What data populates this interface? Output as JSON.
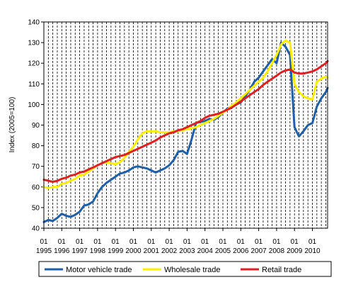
{
  "chart_data": {
    "type": "line",
    "ylabel": "Index (2005=100)",
    "ylim": [
      40,
      140
    ],
    "y_ticks": [
      "40",
      "50",
      "60",
      "70",
      "80",
      "90",
      "100",
      "110",
      "120",
      "130",
      "140"
    ],
    "x_range": [
      1995.0,
      2010.85
    ],
    "x_tick_top": "01",
    "x_years": [
      "1995",
      "1996",
      "1997",
      "1998",
      "1999",
      "2000",
      "2001",
      "2002",
      "2003",
      "2004",
      "2005",
      "2006",
      "2007",
      "2008",
      "2009",
      "2010"
    ],
    "vertical_gridlines": "dashed-quarterly",
    "legend_position": "bottom",
    "series": [
      {
        "name": "Motor vehicle trade",
        "color": "#1f5fa8",
        "x": [
          1995.0,
          1995.25,
          1995.5,
          1995.75,
          1996.0,
          1996.25,
          1996.5,
          1996.75,
          1997.0,
          1997.25,
          1997.5,
          1997.75,
          1998.0,
          1998.25,
          1998.5,
          1998.75,
          1999.0,
          1999.25,
          1999.5,
          1999.75,
          2000.0,
          2000.25,
          2000.5,
          2000.75,
          2001.0,
          2001.25,
          2001.5,
          2001.75,
          2002.0,
          2002.25,
          2002.5,
          2002.75,
          2003.0,
          2003.25,
          2003.5,
          2003.75,
          2004.0,
          2004.25,
          2004.5,
          2004.75,
          2005.0,
          2005.25,
          2005.5,
          2005.75,
          2006.0,
          2006.25,
          2006.5,
          2006.75,
          2007.0,
          2007.25,
          2007.5,
          2007.75,
          2008.0,
          2008.25,
          2008.5,
          2008.75,
          2009.0,
          2009.25,
          2009.5,
          2009.75,
          2010.0,
          2010.25,
          2010.5,
          2010.75,
          2010.85
        ],
        "values": [
          43,
          44,
          43.5,
          45,
          47,
          46,
          45.5,
          46.5,
          48,
          51,
          51.5,
          53,
          57,
          60,
          62,
          63.5,
          65,
          66.5,
          67,
          68,
          69.5,
          70,
          69.5,
          69,
          68,
          67,
          68,
          69,
          70.5,
          73,
          77,
          77.5,
          76,
          83,
          91,
          91.5,
          92,
          93,
          92.5,
          94,
          96,
          98,
          99,
          100,
          101,
          104,
          107,
          111,
          113,
          116,
          119,
          122,
          120,
          130,
          128,
          124,
          89,
          84.5,
          87,
          90,
          91,
          99,
          103,
          106,
          108
        ]
      },
      {
        "name": "Wholesale trade",
        "color": "#ffee00",
        "x": [
          1995.0,
          1995.25,
          1995.5,
          1995.75,
          1996.0,
          1996.25,
          1996.5,
          1996.75,
          1997.0,
          1997.25,
          1997.5,
          1997.75,
          1998.0,
          1998.25,
          1998.5,
          1998.75,
          1999.0,
          1999.25,
          1999.5,
          1999.75,
          2000.0,
          2000.25,
          2000.5,
          2000.75,
          2001.0,
          2001.25,
          2001.5,
          2001.75,
          2002.0,
          2002.25,
          2002.5,
          2002.75,
          2003.0,
          2003.25,
          2003.5,
          2003.75,
          2004.0,
          2004.25,
          2004.5,
          2004.75,
          2005.0,
          2005.25,
          2005.5,
          2005.75,
          2006.0,
          2006.25,
          2006.5,
          2006.75,
          2007.0,
          2007.25,
          2007.5,
          2007.75,
          2008.0,
          2008.25,
          2008.5,
          2008.75,
          2009.0,
          2009.25,
          2009.5,
          2009.75,
          2010.0,
          2010.25,
          2010.5,
          2010.75,
          2010.85
        ],
        "values": [
          60,
          59.5,
          60,
          60,
          61.5,
          62,
          63,
          64,
          65.5,
          66,
          67.5,
          69,
          70.5,
          71.5,
          72,
          71.5,
          71,
          72,
          74,
          77,
          79.5,
          83,
          86,
          87,
          87,
          87,
          86.5,
          86.5,
          86.5,
          87,
          87,
          87.5,
          88,
          88.5,
          89,
          90,
          91,
          92,
          93,
          94.5,
          96,
          97.5,
          99.5,
          101,
          103,
          105,
          107,
          109,
          111,
          113,
          116,
          120,
          124,
          129,
          131,
          130,
          110,
          106,
          104,
          103,
          102.5,
          111,
          112.5,
          113.5,
          113
        ]
      },
      {
        "name": "Retail trade",
        "color": "#e02020",
        "x": [
          1995.0,
          1995.25,
          1995.5,
          1995.75,
          1996.0,
          1996.25,
          1996.5,
          1996.75,
          1997.0,
          1997.25,
          1997.5,
          1997.75,
          1998.0,
          1998.25,
          1998.5,
          1998.75,
          1999.0,
          1999.25,
          1999.5,
          1999.75,
          2000.0,
          2000.25,
          2000.5,
          2000.75,
          2001.0,
          2001.25,
          2001.5,
          2001.75,
          2002.0,
          2002.25,
          2002.5,
          2002.75,
          2003.0,
          2003.25,
          2003.5,
          2003.75,
          2004.0,
          2004.25,
          2004.5,
          2004.75,
          2005.0,
          2005.25,
          2005.5,
          2005.75,
          2006.0,
          2006.25,
          2006.5,
          2006.75,
          2007.0,
          2007.25,
          2007.5,
          2007.75,
          2008.0,
          2008.25,
          2008.5,
          2008.75,
          2009.0,
          2009.25,
          2009.5,
          2009.75,
          2010.0,
          2010.25,
          2010.5,
          2010.75,
          2010.85
        ],
        "values": [
          63.5,
          63,
          62.5,
          63,
          64,
          64.5,
          65.5,
          66,
          67,
          67.5,
          68.5,
          69.5,
          70.5,
          71.5,
          72.5,
          73.5,
          74.5,
          75,
          75.5,
          76.5,
          77.5,
          78.5,
          79.5,
          80.5,
          81.5,
          82.5,
          84,
          85,
          86,
          86.5,
          87.5,
          88,
          89,
          90,
          91,
          92,
          93.5,
          94.5,
          95,
          95.5,
          96.5,
          97.5,
          98.5,
          100,
          101.5,
          103,
          104.5,
          106,
          107.5,
          109.5,
          111,
          112.5,
          114,
          115.5,
          116.5,
          117,
          115.5,
          115,
          115,
          115.5,
          116,
          117,
          118.5,
          120,
          121
        ]
      }
    ]
  }
}
